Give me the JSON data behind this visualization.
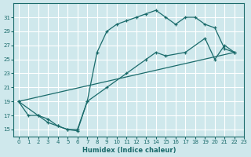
{
  "xlabel": "Humidex (Indice chaleur)",
  "bg_color": "#cfe8ec",
  "grid_color": "#ffffff",
  "line_color": "#1a6b6b",
  "xlim": [
    -0.5,
    23
  ],
  "ylim": [
    14,
    33
  ],
  "xticks": [
    0,
    1,
    2,
    3,
    4,
    5,
    6,
    7,
    8,
    9,
    10,
    11,
    12,
    13,
    14,
    15,
    16,
    17,
    18,
    19,
    20,
    21,
    22,
    23
  ],
  "yticks": [
    15,
    17,
    19,
    21,
    23,
    25,
    27,
    29,
    31
  ],
  "curve1_x": [
    0,
    1,
    2,
    3,
    4,
    5,
    6,
    7,
    8,
    9,
    10,
    11,
    12,
    13,
    14,
    15,
    16,
    17,
    18,
    19,
    20,
    21,
    22
  ],
  "curve1_y": [
    19,
    17,
    17,
    16,
    15.5,
    15,
    15,
    19,
    26,
    29,
    30,
    30.5,
    31,
    31.5,
    32,
    31,
    30,
    31,
    31,
    30,
    29.5,
    26.5,
    26
  ],
  "curve2_x": [
    0,
    2,
    3,
    4,
    5,
    6,
    7,
    9,
    11,
    13,
    14,
    15,
    17,
    19,
    20,
    21,
    22
  ],
  "curve2_y": [
    19,
    17,
    16.5,
    15.5,
    15.0,
    14.8,
    19,
    21,
    23,
    25,
    26,
    25.5,
    26,
    28,
    25,
    27,
    26
  ],
  "curve3_x": [
    0,
    22
  ],
  "curve3_y": [
    19,
    26
  ]
}
